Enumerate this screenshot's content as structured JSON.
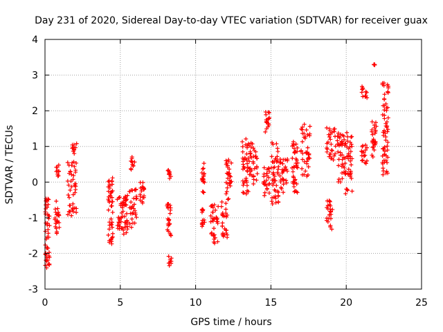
{
  "chart_data": {
    "type": "scatter",
    "title": "Day 231 of 2020, Sidereal Day-to-day VTEC variation (SDTVAR) for receiver guax",
    "xlabel": "GPS time / hours",
    "ylabel": "SDTVAR / TECUs",
    "xlim": [
      0,
      25
    ],
    "ylim": [
      -3,
      4
    ],
    "xticks": [
      "0",
      "5",
      "10",
      "15",
      "20",
      "25"
    ],
    "yticks": [
      "-3",
      "-2",
      "-1",
      "0",
      "1",
      "2",
      "3",
      "4"
    ],
    "grid": true,
    "marker": "+",
    "color": "#ff0000",
    "clusters": [
      {
        "x": [
          0.02,
          0.3
        ],
        "y": [
          -2.45,
          -0.45
        ]
      },
      {
        "x": [
          0.65,
          0.95
        ],
        "y": [
          -1.45,
          -0.5
        ]
      },
      {
        "x": [
          0.75,
          0.95
        ],
        "y": [
          0.15,
          0.5
        ]
      },
      {
        "x": [
          1.5,
          2.1
        ],
        "y": [
          -0.95,
          0.7
        ]
      },
      {
        "x": [
          1.8,
          2.1
        ],
        "y": [
          0.8,
          1.08
        ]
      },
      {
        "x": [
          4.2,
          4.5
        ],
        "y": [
          -1.75,
          0.15
        ]
      },
      {
        "x": [
          4.8,
          5.2
        ],
        "y": [
          -1.35,
          -0.4
        ]
      },
      {
        "x": [
          5.2,
          5.5
        ],
        "y": [
          -1.5,
          -0.35
        ]
      },
      {
        "x": [
          5.6,
          6.1
        ],
        "y": [
          -1.3,
          -0.2
        ]
      },
      {
        "x": [
          5.7,
          6.0
        ],
        "y": [
          0.35,
          0.75
        ]
      },
      {
        "x": [
          6.3,
          6.6
        ],
        "y": [
          -0.6,
          0.0
        ]
      },
      {
        "x": [
          8.1,
          8.4
        ],
        "y": [
          -1.5,
          -0.6
        ]
      },
      {
        "x": [
          8.1,
          8.4
        ],
        "y": [
          0.1,
          0.35
        ]
      },
      {
        "x": [
          8.2,
          8.4
        ],
        "y": [
          -2.35,
          -2.05
        ]
      },
      {
        "x": [
          10.4,
          10.6
        ],
        "y": [
          -1.3,
          -0.75
        ]
      },
      {
        "x": [
          10.4,
          10.6
        ],
        "y": [
          -0.3,
          0.55
        ]
      },
      {
        "x": [
          11.0,
          11.5
        ],
        "y": [
          -1.75,
          -0.55
        ]
      },
      {
        "x": [
          11.7,
          12.1
        ],
        "y": [
          -1.55,
          -0.55
        ]
      },
      {
        "x": [
          12.0,
          12.4
        ],
        "y": [
          -0.5,
          0.65
        ]
      },
      {
        "x": [
          13.1,
          13.6
        ],
        "y": [
          -0.4,
          1.3
        ]
      },
      {
        "x": [
          13.6,
          14.1
        ],
        "y": [
          -0.1,
          1.1
        ]
      },
      {
        "x": [
          14.5,
          14.9
        ],
        "y": [
          -0.4,
          0.5
        ]
      },
      {
        "x": [
          14.6,
          14.9
        ],
        "y": [
          1.4,
          2.0
        ]
      },
      {
        "x": [
          15.0,
          15.5
        ],
        "y": [
          -0.65,
          1.2
        ]
      },
      {
        "x": [
          15.6,
          16.1
        ],
        "y": [
          -0.35,
          0.65
        ]
      },
      {
        "x": [
          16.4,
          16.8
        ],
        "y": [
          -0.3,
          1.2
        ]
      },
      {
        "x": [
          17.0,
          17.6
        ],
        "y": [
          0.15,
          1.65
        ]
      },
      {
        "x": [
          18.7,
          19.1
        ],
        "y": [
          -1.35,
          -0.5
        ]
      },
      {
        "x": [
          18.7,
          19.3
        ],
        "y": [
          0.6,
          1.6
        ]
      },
      {
        "x": [
          19.4,
          19.9
        ],
        "y": [
          0.0,
          1.4
        ]
      },
      {
        "x": [
          19.9,
          20.4
        ],
        "y": [
          -0.35,
          1.4
        ]
      },
      {
        "x": [
          21.0,
          21.4
        ],
        "y": [
          0.5,
          1.05
        ]
      },
      {
        "x": [
          21.0,
          21.4
        ],
        "y": [
          2.35,
          2.7
        ]
      },
      {
        "x": [
          21.7,
          22.0
        ],
        "y": [
          0.7,
          1.7
        ]
      },
      {
        "x": [
          21.8,
          21.9
        ],
        "y": [
          3.28,
          3.3
        ]
      },
      {
        "x": [
          22.4,
          22.8
        ],
        "y": [
          0.2,
          2.8
        ]
      }
    ]
  }
}
